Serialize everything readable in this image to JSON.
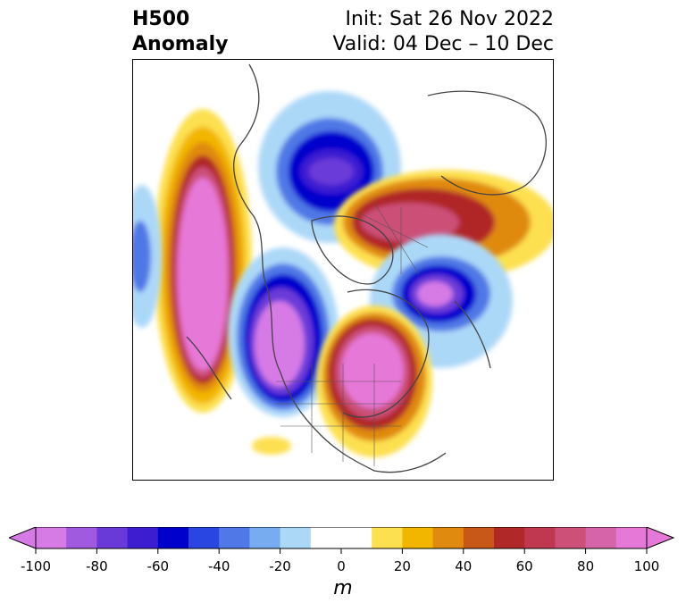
{
  "title": {
    "left_line1": "H500",
    "left_line2": "Anomaly",
    "right_line1": "Init: Sat 26 Nov 2022",
    "right_line2": "Valid: 04 Dec – 10 Dec"
  },
  "colorbar": {
    "unit": "m",
    "ticks": [
      "-100",
      "-80",
      "-60",
      "-40",
      "-20",
      "0",
      "20",
      "40",
      "60",
      "80",
      "100"
    ],
    "tick_values": [
      -100,
      -80,
      -60,
      -40,
      -20,
      0,
      20,
      40,
      60,
      80,
      100
    ],
    "range": [
      -100,
      100
    ],
    "step": 10,
    "colors": [
      "#d67ae6",
      "#a05ae0",
      "#6a3ad8",
      "#3c1ed0",
      "#0000cd",
      "#2a46e0",
      "#5078e6",
      "#78acf0",
      "#acd8f8",
      "#ffffff",
      "#ffffff",
      "#fde050",
      "#f2b600",
      "#e08a10",
      "#c85818",
      "#b02828",
      "#c03850",
      "#cc5078",
      "#d664a8",
      "#e678d8"
    ]
  },
  "map": {
    "projection": "polar stereographic, North America",
    "colors": {
      "ridge_core": "#e678d8",
      "ridge_mid": "#b02828",
      "ridge_edge": "#fde050",
      "trough_core": "#d67ae6",
      "trough_mid": "#0000cd",
      "trough_edge": "#acd8f8",
      "coastline": "#444444"
    }
  }
}
